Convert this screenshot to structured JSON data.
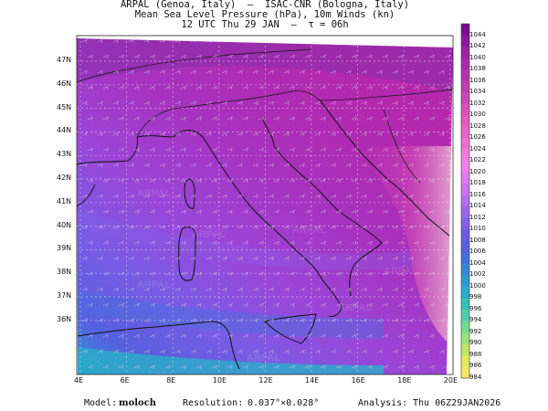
{
  "header": {
    "line1": "ARPAL (Genoa, Italy)  —  ISAC-CNR (Bologna, Italy)",
    "line2": "Mean Sea Level Pressure (hPa), 10m Winds (kn)",
    "line3": "12 UTC Thu 29 JAN  —  τ = 06h"
  },
  "map": {
    "lat_labels": [
      "47N",
      "46N",
      "45N",
      "44N",
      "43N",
      "42N",
      "41N",
      "40N",
      "39N",
      "38N",
      "37N",
      "36N"
    ],
    "lon_labels": [
      "4E",
      "6E",
      "8E",
      "10E",
      "12E",
      "14E",
      "16E",
      "18E",
      "20E"
    ],
    "watermark": "ARPAL"
  },
  "colorbar": {
    "labels": [
      "1044",
      "1042",
      "1040",
      "1038",
      "1036",
      "1034",
      "1032",
      "1030",
      "1028",
      "1026",
      "1024",
      "1022",
      "1020",
      "1018",
      "1016",
      "1014",
      "1012",
      "1010",
      "1008",
      "1006",
      "1004",
      "1002",
      "1000",
      "998",
      "996",
      "994",
      "992",
      "990",
      "988",
      "986",
      "984"
    ],
    "colors": [
      "#7a0f8c",
      "#8b1898",
      "#9b22a3",
      "#a92aa9",
      "#b534ad",
      "#c03cb0",
      "#cc46b5",
      "#d84fba",
      "#e357c0",
      "#ea63c9",
      "#ef6fd3",
      "#f27be0",
      "#f27fec",
      "#e07aef",
      "#cc74ee",
      "#b56ded",
      "#9d66ea",
      "#8660e6",
      "#6e5be2",
      "#5860df",
      "#4671dc",
      "#3a86d7",
      "#2f9ad1",
      "#2aaec9",
      "#33c1bb",
      "#4fcfa8",
      "#72db92",
      "#98e37c",
      "#bfe869",
      "#e0ea5e",
      "#f6e85c"
    ]
  },
  "footer": {
    "model_label": "Model:",
    "model_value": "moloch",
    "resolution_label": "Resolution:",
    "resolution_value": "0.037°×0.028°",
    "analysis_label": "Analysis:",
    "analysis_value": "Thu 06Z29JAN2026"
  }
}
